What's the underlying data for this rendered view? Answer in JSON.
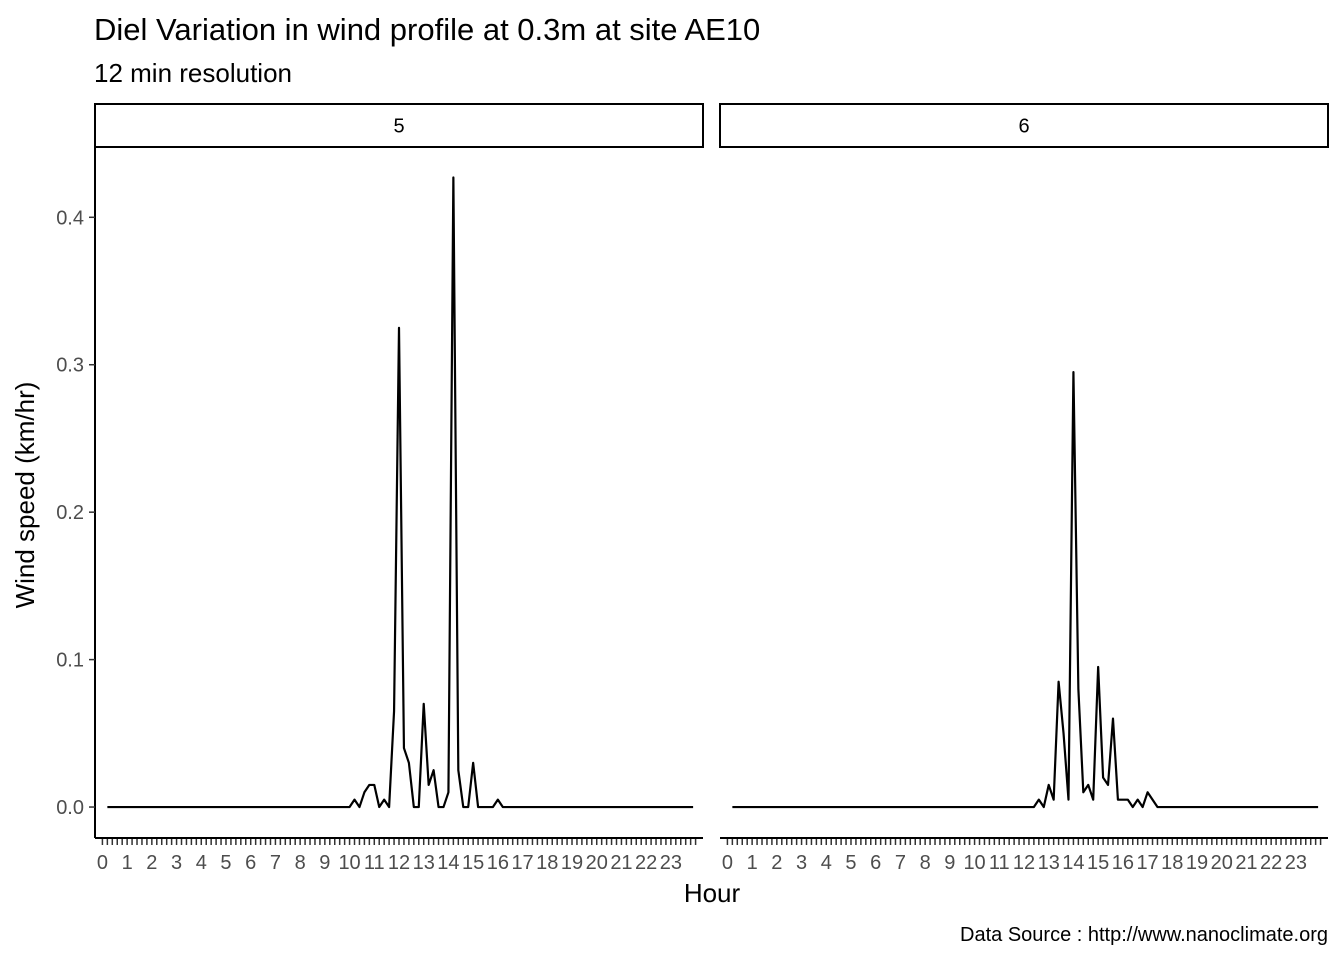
{
  "chart_data": {
    "type": "line",
    "title": "Diel Variation in wind profile at 0.3m at site AE10",
    "subtitle": "12 min resolution",
    "xlabel": "Hour",
    "ylabel": "Wind speed (km/hr)",
    "caption": "Data Source : http://www.nanoclimate.org",
    "xlim": [
      -0.3,
      24.3
    ],
    "ylim": [
      -0.021,
      0.447
    ],
    "x_ticks": [
      0,
      1,
      2,
      3,
      4,
      5,
      6,
      7,
      8,
      9,
      10,
      11,
      12,
      13,
      14,
      15,
      16,
      17,
      18,
      19,
      20,
      21,
      22,
      23
    ],
    "x_tick_labels": [
      "0",
      "1",
      "2",
      "3",
      "4",
      "5",
      "6",
      "7",
      "8",
      "9",
      "10",
      "11",
      "12",
      "13",
      "14",
      "15",
      "16",
      "17",
      "18",
      "19",
      "20",
      "21",
      "22",
      "23"
    ],
    "y_ticks": [
      0,
      0.1,
      0.2,
      0.3,
      0.4
    ],
    "y_tick_labels": [
      "0.0",
      "0.1",
      "0.2",
      "0.3",
      "0.4"
    ],
    "grid": false,
    "panels": [
      {
        "label": "5",
        "x": [
          0.2,
          9.8,
          10.0,
          10.2,
          10.4,
          10.6,
          10.8,
          11.0,
          11.2,
          11.4,
          11.6,
          11.8,
          12.0,
          12.2,
          12.4,
          12.6,
          12.8,
          13.0,
          13.2,
          13.4,
          13.6,
          13.8,
          14.0,
          14.2,
          14.4,
          14.6,
          14.8,
          15.0,
          15.2,
          15.4,
          15.6,
          15.8,
          16.0,
          16.2,
          16.4,
          23.9
        ],
        "y": [
          0,
          0,
          0,
          0.005,
          0,
          0.01,
          0.015,
          0.015,
          0,
          0.005,
          0,
          0.065,
          0.325,
          0.04,
          0.03,
          0,
          0,
          0.07,
          0.015,
          0.025,
          0,
          0,
          0.01,
          0.427,
          0.025,
          0,
          0,
          0.03,
          0,
          0,
          0,
          0,
          0.005,
          0,
          0,
          0
        ]
      },
      {
        "label": "6",
        "x": [
          0.2,
          12.4,
          12.6,
          12.8,
          13.0,
          13.2,
          13.4,
          13.6,
          13.8,
          14.0,
          14.2,
          14.4,
          14.6,
          14.8,
          15.0,
          15.2,
          15.4,
          15.6,
          15.8,
          16.0,
          16.2,
          16.4,
          16.6,
          16.8,
          17.0,
          17.2,
          17.4,
          23.9
        ],
        "y": [
          0,
          0,
          0.005,
          0,
          0.015,
          0.005,
          0.085,
          0.05,
          0.005,
          0.295,
          0.08,
          0.01,
          0.015,
          0.005,
          0.095,
          0.02,
          0.015,
          0.06,
          0.005,
          0.005,
          0.005,
          0,
          0.005,
          0,
          0.01,
          0.005,
          0,
          0
        ]
      }
    ]
  }
}
